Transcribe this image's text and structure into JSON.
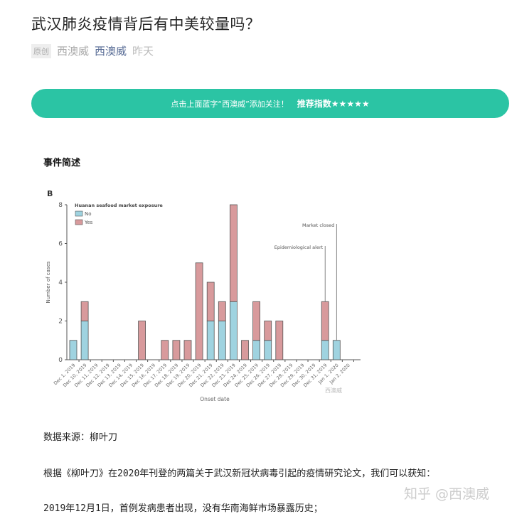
{
  "article": {
    "title": "武汉肺炎疫情背后有中美较量吗？",
    "badge": "原创",
    "author": "西澳威",
    "account": "西澳威",
    "time": "昨天"
  },
  "banner": {
    "text": "点击上面蓝字“西澳威”添加关注！",
    "bold": "推荐指数★★★★★",
    "color": "#2bc4a4"
  },
  "section_heading": "事件简述",
  "chart_data": {
    "type": "bar",
    "stacked": true,
    "panel_label": "B",
    "legend_title": "Huanan seafood market exposure",
    "legend_placement": "top-left",
    "xlabel": "Onset date",
    "ylabel": "Number of cases",
    "ylim": [
      0,
      8
    ],
    "yticks": [
      0,
      2,
      4,
      6,
      8
    ],
    "categories": [
      "Dec 1, 2019",
      "Dec 10, 2019",
      "Dec 11, 2019",
      "Dec 12, 2019",
      "Dec 13, 2019",
      "Dec 14, 2019",
      "Dec 15, 2019",
      "Dec 16, 2019",
      "Dec 17, 2019",
      "Dec 18, 2019",
      "Dec 19, 2019",
      "Dec 20, 2019",
      "Dec 21, 2019",
      "Dec 22, 2019",
      "Dec 23, 2019",
      "Dec 24, 2019",
      "Dec 25, 2019",
      "Dec 26, 2019",
      "Dec 27, 2019",
      "Dec 28, 2019",
      "Dec 29, 2019",
      "Dec 30, 2019",
      "Dec 31, 2019",
      "Jan 1, 2020",
      "Jan 2, 2020"
    ],
    "series": [
      {
        "name": "No",
        "color": "#9fd3e0",
        "values": [
          1,
          2,
          0,
          0,
          0,
          0,
          0,
          0,
          0,
          0,
          0,
          0,
          2,
          2,
          3,
          0,
          1,
          1,
          0,
          0,
          0,
          0,
          1,
          1,
          0
        ]
      },
      {
        "name": "Yes",
        "color": "#d89a9c",
        "values": [
          0,
          1,
          0,
          0,
          0,
          0,
          2,
          0,
          1,
          1,
          1,
          5,
          2,
          1,
          5,
          1,
          2,
          1,
          2,
          0,
          0,
          0,
          2,
          0,
          0
        ]
      }
    ],
    "annotations": [
      {
        "text": "Epidemiological alert",
        "category": "Dec 31, 2019"
      },
      {
        "text": "Market closed",
        "category": "Jan 1, 2020"
      }
    ],
    "image_watermark": "西澳威"
  },
  "paragraphs": [
    "数据来源：柳叶刀",
    "根据《柳叶刀》在2020年刊登的两篇关于武汉新冠状病毒引起的疫情研究论文，我们可以获知：",
    "2019年12月1日，首例发病患者出现，没有华南海鲜市场暴露历史；"
  ],
  "watermark": "知乎 @西澳威"
}
